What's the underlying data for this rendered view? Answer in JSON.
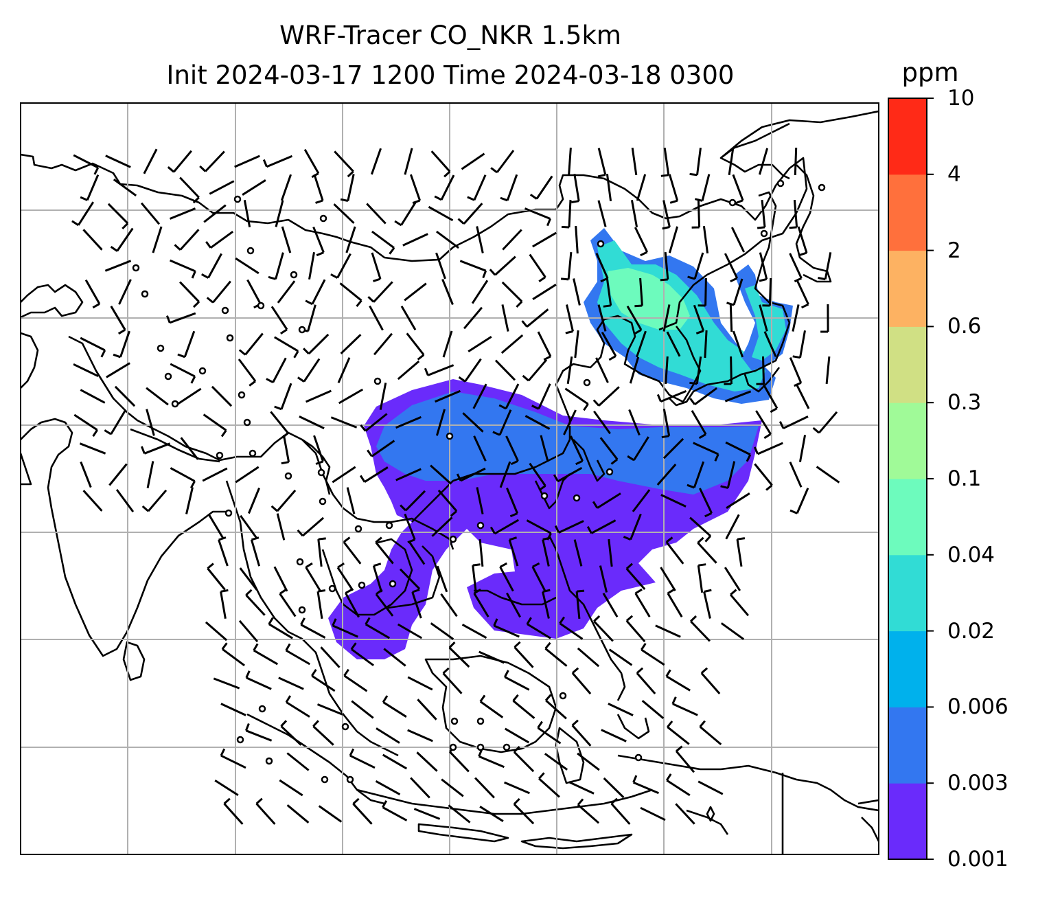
{
  "title": {
    "line1": "WRF-Tracer CO_NKR 1.5km",
    "line2": "Init 2024-03-17 1200 Time 2024-03-18 0300"
  },
  "colorbar": {
    "unit": "ppm",
    "levels": [
      "0.001",
      "0.003",
      "0.006",
      "0.02",
      "0.04",
      "0.1",
      "0.3",
      "0.6",
      "2",
      "4",
      "10"
    ],
    "colors": [
      "#6a2bfb",
      "#3377f0",
      "#00b1ec",
      "#31dcd5",
      "#6dfbbd",
      "#a0fa98",
      "#d0e084",
      "#fdb262",
      "#ff703c",
      "#ff2a17"
    ]
  },
  "map": {
    "gridlines": true,
    "colors": {
      "coast": "#000000",
      "grid": "#b0b0b0"
    }
  }
}
